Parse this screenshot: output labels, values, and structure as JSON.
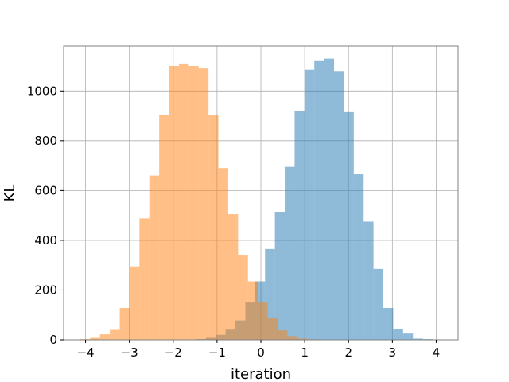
{
  "chart_data": {
    "type": "bar",
    "xlabel": "iteration",
    "ylabel": "KL",
    "xlim": [
      -4.5,
      4.5
    ],
    "ylim": [
      0,
      1180
    ],
    "grid": true,
    "x_ticks": [
      -4,
      -3,
      -2,
      -1,
      0,
      1,
      2,
      3,
      4
    ],
    "x_tick_labels": [
      "−4",
      "−3",
      "−2",
      "−1",
      "0",
      "1",
      "2",
      "3",
      "4"
    ],
    "y_ticks": [
      0,
      200,
      400,
      600,
      800,
      1000
    ],
    "y_tick_labels": [
      "0",
      "200",
      "400",
      "600",
      "800",
      "1000"
    ],
    "bin_width": 0.225,
    "series": [
      {
        "color": "#1f77b4",
        "opacity": 0.5,
        "bin_start": -1.48,
        "values": [
          3,
          8,
          20,
          41,
          78,
          150,
          235,
          365,
          515,
          695,
          920,
          1085,
          1120,
          1130,
          1080,
          915,
          665,
          475,
          285,
          128,
          43,
          25,
          5,
          3
        ]
      },
      {
        "color": "#ff7f0e",
        "opacity": 0.5,
        "bin_start": -4.12,
        "values": [
          3,
          8,
          22,
          40,
          128,
          295,
          488,
          660,
          905,
          1100,
          1110,
          1100,
          1090,
          905,
          690,
          505,
          340,
          235,
          150,
          89,
          38,
          15,
          5,
          2
        ]
      }
    ]
  }
}
